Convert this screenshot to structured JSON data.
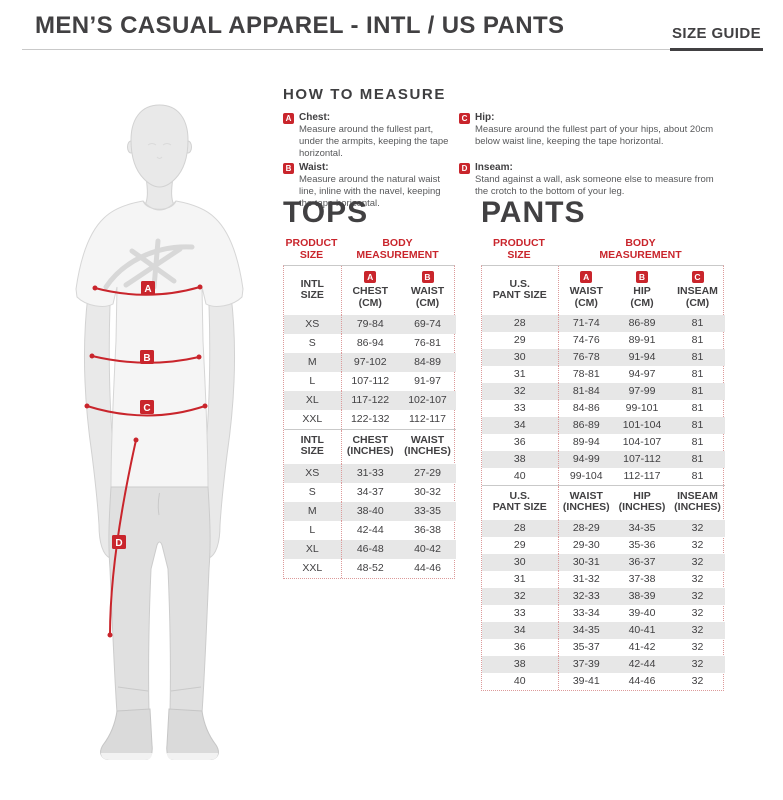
{
  "colors": {
    "accent_red": "#c9252c",
    "row_shade": "#e7e7e7",
    "text_dark": "#414042"
  },
  "header": {
    "title": "MEN’S CASUAL APPAREL - INTL / US PANTS",
    "size_guide_label": "SIZE GUIDE"
  },
  "how_to_measure": {
    "title": "HOW TO MEASURE",
    "items": [
      {
        "badge": "A",
        "name": "Chest:",
        "text": "Measure around the fullest part, under the armpits, keeping the tape horizontal."
      },
      {
        "badge": "B",
        "name": "Waist:",
        "text": "Measure around the natural waist line, inline with the navel, keeping the tape horizontal."
      },
      {
        "badge": "C",
        "name": "Hip:",
        "text": "Measure around the fullest part of your hips, about 20cm below waist line, keeping the tape horizontal."
      },
      {
        "badge": "D",
        "name": "Inseam:",
        "text": "Stand against a wall, ask someone else to measure from the crotch to the bottom of your leg."
      }
    ]
  },
  "figure": {
    "markers": [
      "A",
      "B",
      "C",
      "D"
    ]
  },
  "tops": {
    "title": "TOPS",
    "product_size_label": "PRODUCT\nSIZE",
    "body_measurement_label": "BODY\nMEASUREMENT",
    "cm": {
      "size_header": "INTL\nSIZE",
      "columns": [
        {
          "badge": "A",
          "label": "CHEST\n(CM)"
        },
        {
          "badge": "B",
          "label": "WAIST\n(CM)"
        }
      ],
      "rows": [
        [
          "XS",
          "79-84",
          "69-74"
        ],
        [
          "S",
          "86-94",
          "76-81"
        ],
        [
          "M",
          "97-102",
          "84-89"
        ],
        [
          "L",
          "107-112",
          "91-97"
        ],
        [
          "XL",
          "117-122",
          "102-107"
        ],
        [
          "XXL",
          "122-132",
          "112-117"
        ]
      ]
    },
    "inches": {
      "size_header": "INTL\nSIZE",
      "columns": [
        {
          "label": "CHEST\n(INCHES)"
        },
        {
          "label": "WAIST\n(INCHES)"
        }
      ],
      "rows": [
        [
          "XS",
          "31-33",
          "27-29"
        ],
        [
          "S",
          "34-37",
          "30-32"
        ],
        [
          "M",
          "38-40",
          "33-35"
        ],
        [
          "L",
          "42-44",
          "36-38"
        ],
        [
          "XL",
          "46-48",
          "40-42"
        ],
        [
          "XXL",
          "48-52",
          "44-46"
        ]
      ]
    }
  },
  "pants": {
    "title": "PANTS",
    "product_size_label": "PRODUCT\nSIZE",
    "body_measurement_label": "BODY\nMEASUREMENT",
    "cm": {
      "size_header": "U.S.\nPANT SIZE",
      "columns": [
        {
          "badge": "A",
          "label": "WAIST\n(CM)"
        },
        {
          "badge": "B",
          "label": "HIP\n(CM)"
        },
        {
          "badge": "C",
          "label": "INSEAM\n(CM)"
        }
      ],
      "rows": [
        [
          "28",
          "71-74",
          "86-89",
          "81"
        ],
        [
          "29",
          "74-76",
          "89-91",
          "81"
        ],
        [
          "30",
          "76-78",
          "91-94",
          "81"
        ],
        [
          "31",
          "78-81",
          "94-97",
          "81"
        ],
        [
          "32",
          "81-84",
          "97-99",
          "81"
        ],
        [
          "33",
          "84-86",
          "99-101",
          "81"
        ],
        [
          "34",
          "86-89",
          "101-104",
          "81"
        ],
        [
          "36",
          "89-94",
          "104-107",
          "81"
        ],
        [
          "38",
          "94-99",
          "107-112",
          "81"
        ],
        [
          "40",
          "99-104",
          "112-117",
          "81"
        ]
      ]
    },
    "inches": {
      "size_header": "U.S.\nPANT SIZE",
      "columns": [
        {
          "label": "WAIST\n(INCHES)"
        },
        {
          "label": "HIP\n(INCHES)"
        },
        {
          "label": "INSEAM\n(INCHES)"
        }
      ],
      "rows": [
        [
          "28",
          "28-29",
          "34-35",
          "32"
        ],
        [
          "29",
          "29-30",
          "35-36",
          "32"
        ],
        [
          "30",
          "30-31",
          "36-37",
          "32"
        ],
        [
          "31",
          "31-32",
          "37-38",
          "32"
        ],
        [
          "32",
          "32-33",
          "38-39",
          "32"
        ],
        [
          "33",
          "33-34",
          "39-40",
          "32"
        ],
        [
          "34",
          "34-35",
          "40-41",
          "32"
        ],
        [
          "36",
          "35-37",
          "41-42",
          "32"
        ],
        [
          "38",
          "37-39",
          "42-44",
          "32"
        ],
        [
          "40",
          "39-41",
          "44-46",
          "32"
        ]
      ]
    }
  }
}
